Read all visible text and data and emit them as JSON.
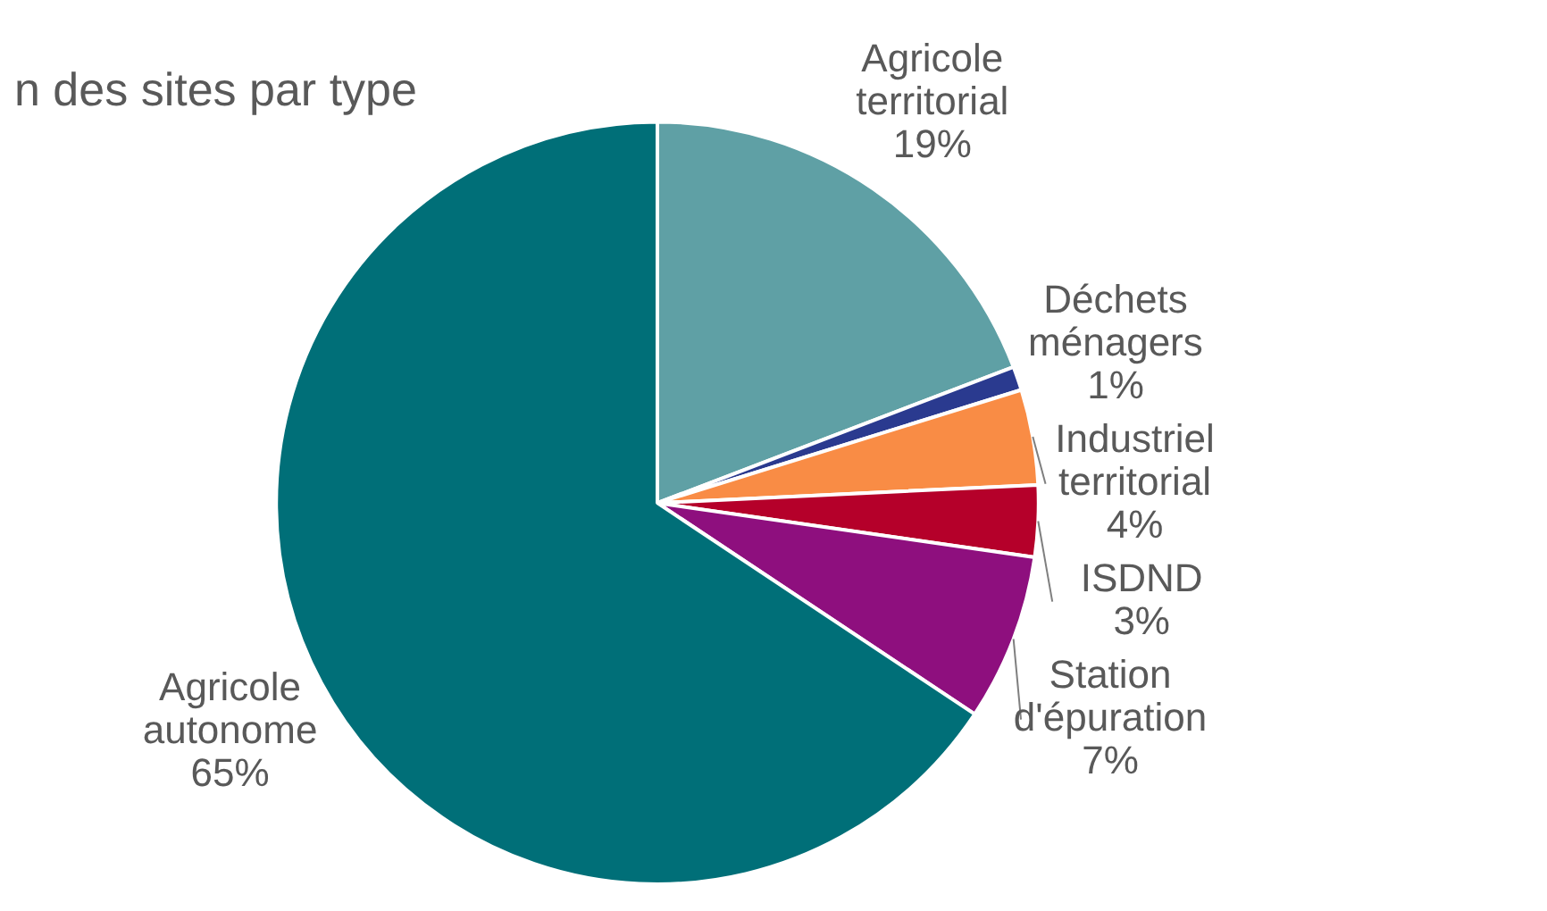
{
  "chart_data": {
    "type": "pie",
    "title": "n des sites par type",
    "categories": [
      "Agricole territorial",
      "Déchets ménagers",
      "Industriel territorial",
      "ISDND",
      "Station d'épuration",
      "Agricole autonome"
    ],
    "values": [
      19,
      1,
      4,
      3,
      7,
      65
    ],
    "colors": [
      "#5fa0a5",
      "#2a3a8f",
      "#f98c45",
      "#b5002a",
      "#8e0f7e",
      "#006f78"
    ],
    "value_labels": [
      "19%",
      "1%",
      "4%",
      "3%",
      "7%",
      "65%"
    ],
    "legend": false
  }
}
